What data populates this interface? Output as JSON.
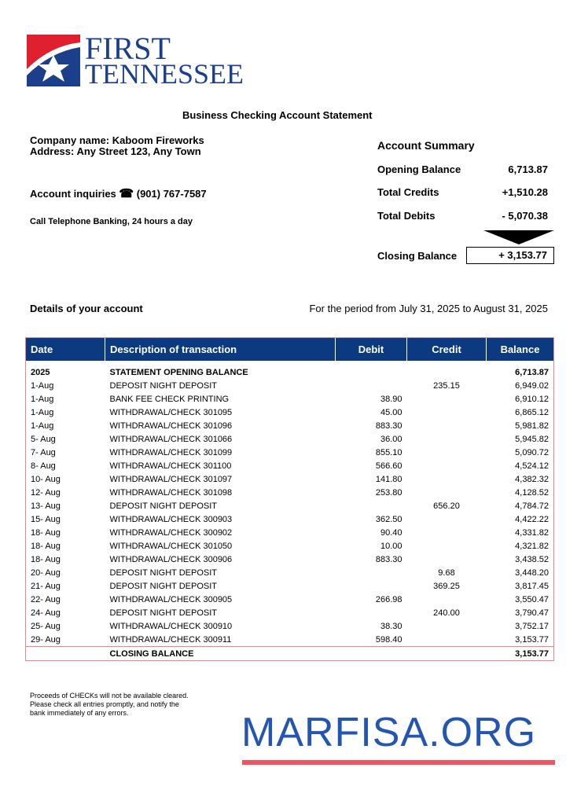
{
  "bank": {
    "name_line1": "FIRST",
    "name_line2": "TENNESSEE",
    "brand_blue": "#1b3f8b",
    "brand_red": "#e0202e"
  },
  "title": "Business Checking Account Statement",
  "company": {
    "name": "Company name: Kaboom Fireworks",
    "address": "Address: Any Street 123, Any Town"
  },
  "inquiries": {
    "label": "Account inquiries",
    "icon": "telephone-icon",
    "phone": "(901) 767-7587",
    "note": "Call Telephone Banking, 24 hours a day"
  },
  "summary": {
    "title": "Account Summary",
    "opening_label": "Opening Balance",
    "opening": "6,713.87",
    "credits_label": "Total Credits",
    "credits": "+1,510.28",
    "debits_label": "Total Debits",
    "debits": "- 5,070.38",
    "closing_label": "Closing Balance",
    "closing": "+ 3,153.77"
  },
  "details_label": "Details of your account",
  "period": "For the period from July 31, 2025 to August 31, 2025",
  "table": {
    "headers": [
      "Date",
      "Description of transaction",
      "Debit",
      "Credit",
      "Balance"
    ],
    "rows": [
      [
        "2025",
        "STATEMENT OPENING BALANCE",
        "",
        "",
        "6,713.87"
      ],
      [
        "1-Aug",
        "DEPOSIT NIGHT DEPOSIT",
        "",
        "235.15",
        "6,949.02"
      ],
      [
        "1-Aug",
        "BANK FEE CHECK PRINTING",
        "38.90",
        "",
        "6,910.12"
      ],
      [
        "1-Aug",
        "WITHDRAWAL/CHECK 301095",
        "45.00",
        "",
        "6,865.12"
      ],
      [
        "1-Aug",
        "WITHDRAWAL/CHECK 301096",
        "883.30",
        "",
        "5,981.82"
      ],
      [
        "5- Aug",
        "WITHDRAWAL/CHECK 301066",
        "36.00",
        "",
        "5,945.82"
      ],
      [
        "7- Aug",
        "WITHDRAWAL/CHECK 301099",
        "855.10",
        "",
        "5,090.72"
      ],
      [
        "8- Aug",
        "WITHDRAWAL/CHECK 301100",
        "566.60",
        "",
        "4,524.12"
      ],
      [
        "10- Aug",
        "WITHDRAWAL/CHECK 301097",
        "141.80",
        "",
        "4,382.32"
      ],
      [
        "12- Aug",
        "WITHDRAWAL/CHECK 301098",
        "253.80",
        "",
        "4,128.52"
      ],
      [
        "13- Aug",
        "DEPOSIT NIGHT DEPOSIT",
        "",
        "656.20",
        "4,784.72"
      ],
      [
        "15- Aug",
        "WITHDRAWAL/CHECK 300903",
        "362.50",
        "",
        "4,422.22"
      ],
      [
        "18- Aug",
        "WITHDRAWAL/CHECK 300902",
        "90.40",
        "",
        "4,331.82"
      ],
      [
        "18- Aug",
        "WITHDRAWAL/CHECK 301050",
        "10.00",
        "",
        "4,321.82"
      ],
      [
        "18- Aug",
        "WITHDRAWAL/CHECK 300906",
        "883.30",
        "",
        "3,438.52"
      ],
      [
        "20- Aug",
        "DEPOSIT NIGHT DEPOSIT",
        "",
        "9.68",
        "3,448.20"
      ],
      [
        "21- Aug",
        "DEPOSIT NIGHT DEPOSIT",
        "",
        "369.25",
        "3,817.45"
      ],
      [
        "22- Aug",
        "WITHDRAWAL/CHECK 300905",
        "266.98",
        "",
        "3,550.47"
      ],
      [
        "24- Aug",
        "DEPOSIT NIGHT DEPOSIT",
        "",
        "240.00",
        "3,790.47"
      ],
      [
        "25- Aug",
        "WITHDRAWAL/CHECK 300910",
        "38.30",
        "",
        "3,752.17"
      ],
      [
        "29- Aug",
        "WITHDRAWAL/CHECK 300911",
        "598.40",
        "",
        "3,153.77"
      ],
      [
        "",
        "CLOSING BALANCE",
        "",
        "",
        "3,153.77"
      ]
    ]
  },
  "footer_note": "Proceeds of CHECKs will not be available cleared. Please check all entries promptly, and notify the bank immediately of any errors.",
  "watermark": {
    "text": "MARFISA.ORG",
    "color": "#2455b0",
    "underline": "#f0545c"
  }
}
